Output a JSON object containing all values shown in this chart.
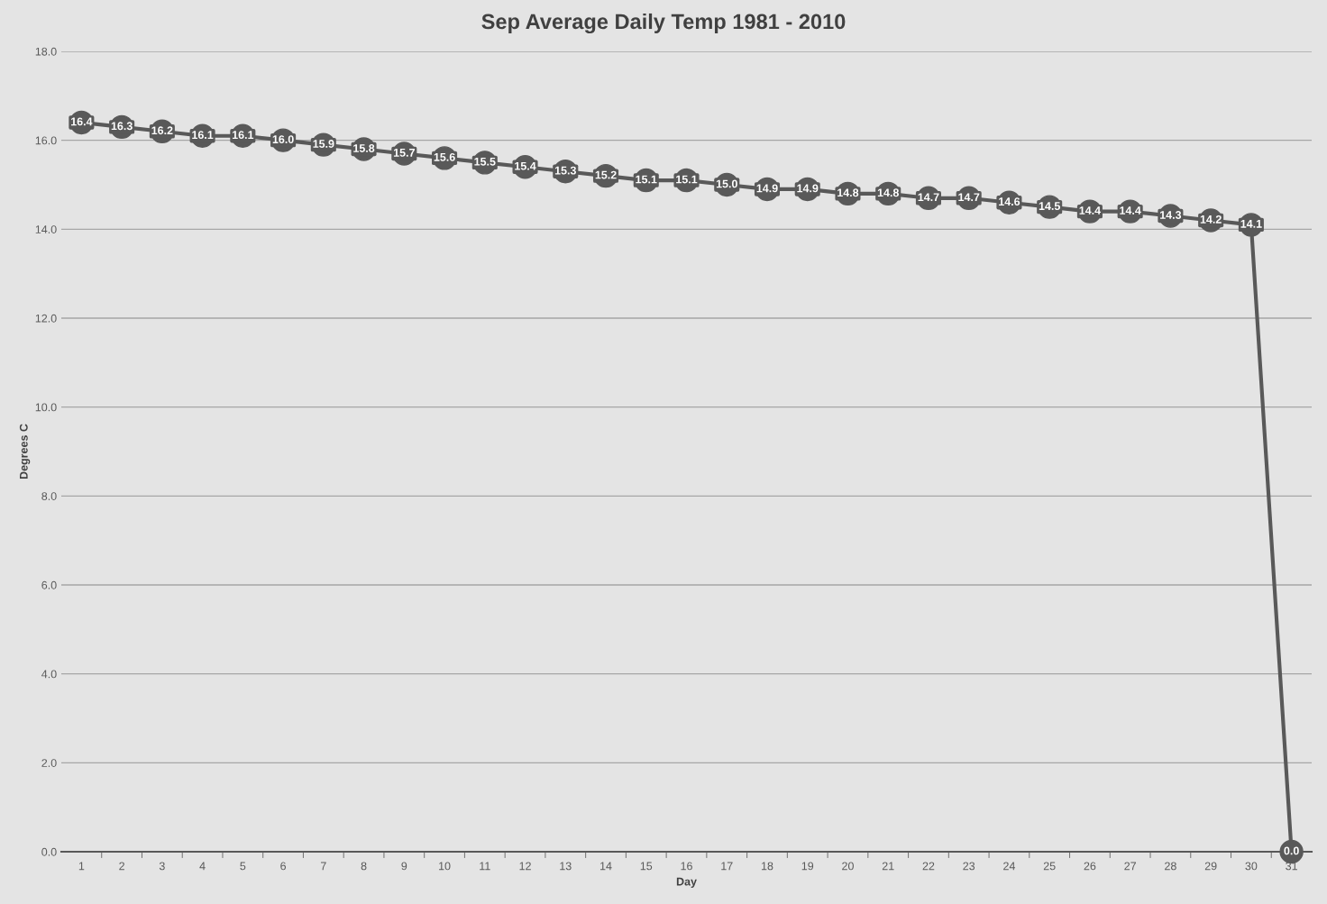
{
  "chart_data": {
    "type": "line",
    "title": "Sep Average Daily Temp 1981 - 2010",
    "xlabel": "Day",
    "ylabel": "Degrees C",
    "categories": [
      "1",
      "2",
      "3",
      "4",
      "5",
      "6",
      "7",
      "8",
      "9",
      "10",
      "11",
      "12",
      "13",
      "14",
      "15",
      "16",
      "17",
      "18",
      "19",
      "20",
      "21",
      "22",
      "23",
      "24",
      "25",
      "26",
      "27",
      "28",
      "29",
      "30",
      "31"
    ],
    "series": [
      {
        "color": "#595959",
        "values": [
          16.4,
          16.3,
          16.2,
          16.1,
          16.1,
          16.0,
          15.9,
          15.8,
          15.7,
          15.6,
          15.5,
          15.4,
          15.3,
          15.2,
          15.1,
          15.1,
          15.0,
          14.9,
          14.9,
          14.8,
          14.8,
          14.7,
          14.7,
          14.6,
          14.5,
          14.4,
          14.4,
          14.3,
          14.2,
          14.1,
          0.0
        ],
        "value_labels": [
          "16.4",
          "16.3",
          "16.2",
          "16.1",
          "16.1",
          "16.0",
          "15.9",
          "15.8",
          "15.7",
          "15.6",
          "15.5",
          "15.4",
          "15.3",
          "15.2",
          "15.1",
          "15.1",
          "15.0",
          "14.9",
          "14.9",
          "14.8",
          "14.8",
          "14.7",
          "14.7",
          "14.6",
          "14.5",
          "14.4",
          "14.4",
          "14.3",
          "14.2",
          "14.1",
          "0.0"
        ]
      }
    ],
    "ylim": [
      0,
      18
    ],
    "yticks": [
      {
        "value": 0,
        "label": "0.0"
      },
      {
        "value": 2,
        "label": "2.0"
      },
      {
        "value": 4,
        "label": "4.0"
      },
      {
        "value": 6,
        "label": "6.0"
      },
      {
        "value": 8,
        "label": "8.0"
      },
      {
        "value": 10,
        "label": "10.0"
      },
      {
        "value": 12,
        "label": "12.0"
      },
      {
        "value": 14,
        "label": "14.0"
      },
      {
        "value": 16,
        "label": "16.0"
      },
      {
        "value": 18,
        "label": "18.0"
      }
    ],
    "grid": "y",
    "marker": "circle",
    "line_style": "solid",
    "legend": false
  }
}
